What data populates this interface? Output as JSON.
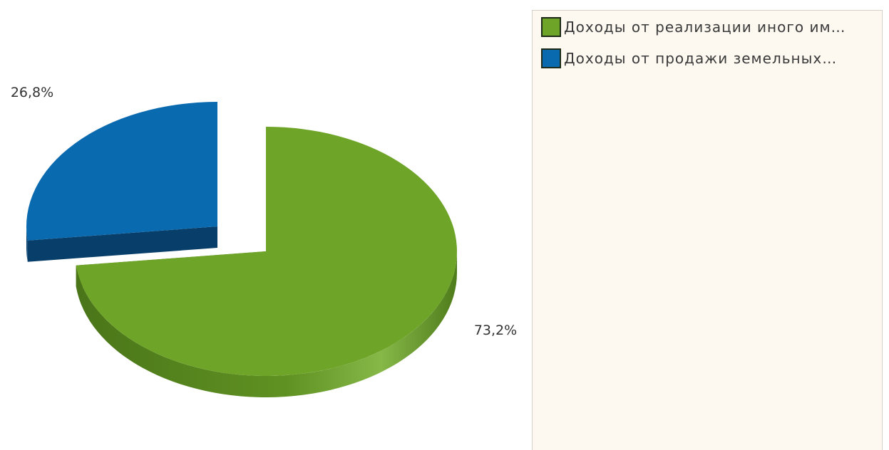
{
  "chart_data": {
    "type": "pie",
    "style": "3d-exploded",
    "title": "",
    "slices": [
      {
        "label": "Доходы от реализации иного им…",
        "value": 73.2,
        "display": "73,2%",
        "color": "#6ea528",
        "side_color": "#4f7c1b"
      },
      {
        "label": "Доходы от продажи земельных…",
        "value": 26.8,
        "display": "26,8%",
        "color": "#0a6aaf",
        "side_color": "#083f6a"
      }
    ],
    "legend_position": "right",
    "exploded_slice": 1
  }
}
